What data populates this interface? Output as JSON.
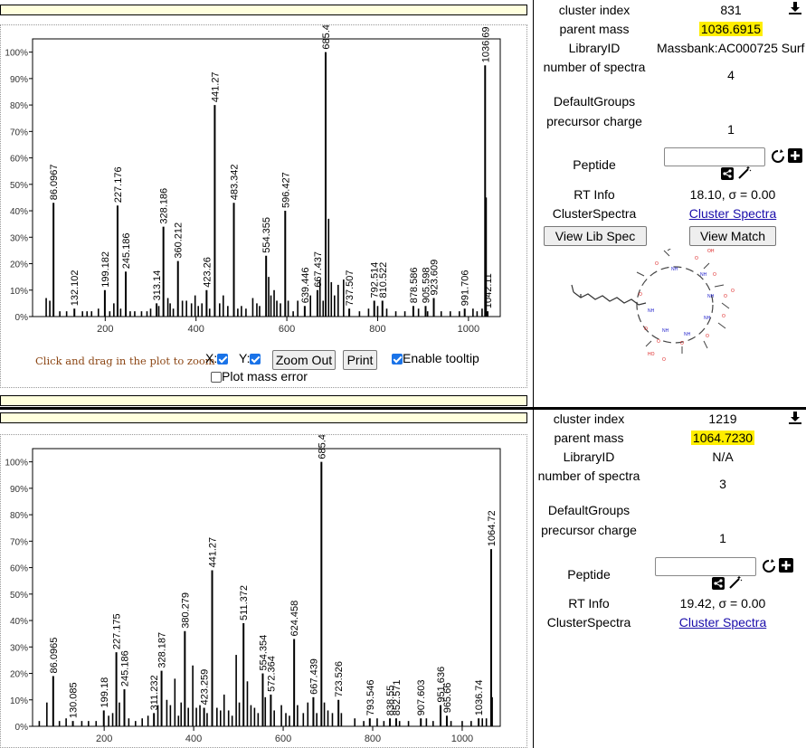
{
  "panels": [
    {
      "info": {
        "cluster_index_label": "cluster index",
        "cluster_index": "831",
        "parent_mass_label": "parent mass",
        "parent_mass": "1036.6915",
        "library_id_label": "LibraryID",
        "library_id": "Massbank:AC000725 Surf",
        "num_spectra_label": "number of spectra",
        "num_spectra": "4",
        "default_groups_label": "DefaultGroups",
        "precursor_charge_label": "precursor charge",
        "precursor_charge": "1",
        "peptide_label": "Peptide",
        "rt_info_label": "RT Info",
        "rt_info": "18.10, σ = 0.00",
        "cluster_spectra_label": "ClusterSpectra",
        "cluster_spectra_link": "Cluster Spectra",
        "view_lib_spec": "View Lib Spec",
        "view_match": "View Match"
      },
      "controls": {
        "hint": "Click and drag in the plot to zoom",
        "x_label": "X:",
        "y_label": "Y:",
        "zoom_out": "Zoom Out",
        "print": "Print",
        "tooltip": "Enable tooltip",
        "mass_error": "Plot mass error"
      }
    },
    {
      "info": {
        "cluster_index_label": "cluster index",
        "cluster_index": "1219",
        "parent_mass_label": "parent mass",
        "parent_mass": "1064.7230",
        "library_id_label": "LibraryID",
        "library_id": "N/A",
        "num_spectra_label": "number of spectra",
        "num_spectra": "3",
        "default_groups_label": "DefaultGroups",
        "precursor_charge_label": "precursor charge",
        "precursor_charge": "1",
        "peptide_label": "Peptide",
        "rt_info_label": "RT Info",
        "rt_info": "19.42, σ = 0.00",
        "cluster_spectra_label": "ClusterSpectra",
        "cluster_spectra_link": "Cluster Spectra"
      }
    }
  ],
  "chart_data": [
    {
      "type": "bar",
      "xlabel": "",
      "ylabel": "",
      "xlim": [
        40,
        1070
      ],
      "ylim": [
        0,
        1.05
      ],
      "x_ticks": [
        "200",
        "400",
        "600",
        "800",
        "1000"
      ],
      "y_ticks": [
        "0%",
        "10%",
        "20%",
        "30%",
        "40%",
        "50%",
        "60%",
        "70%",
        "80%",
        "90%",
        "100%"
      ],
      "labeled_peaks": [
        {
          "mz": 86.0967,
          "intensity": 0.43,
          "label": "86.0967"
        },
        {
          "mz": 132.102,
          "intensity": 0.03,
          "label": "132.102"
        },
        {
          "mz": 199.182,
          "intensity": 0.1,
          "label": "199.182"
        },
        {
          "mz": 227.176,
          "intensity": 0.42,
          "label": "227.176"
        },
        {
          "mz": 245.186,
          "intensity": 0.17,
          "label": "245.186"
        },
        {
          "mz": 313.14,
          "intensity": 0.05,
          "label": "313.14"
        },
        {
          "mz": 328.186,
          "intensity": 0.34,
          "label": "328.186"
        },
        {
          "mz": 360.212,
          "intensity": 0.21,
          "label": "360.212"
        },
        {
          "mz": 423.26,
          "intensity": 0.1,
          "label": "423.26"
        },
        {
          "mz": 441.27,
          "intensity": 0.8,
          "label": "441.27"
        },
        {
          "mz": 483.342,
          "intensity": 0.43,
          "label": "483.342"
        },
        {
          "mz": 554.355,
          "intensity": 0.23,
          "label": "554.355"
        },
        {
          "mz": 596.427,
          "intensity": 0.4,
          "label": "596.427"
        },
        {
          "mz": 639.446,
          "intensity": 0.04,
          "label": "639.446"
        },
        {
          "mz": 667.437,
          "intensity": 0.1,
          "label": "667.437"
        },
        {
          "mz": 685.45,
          "intensity": 1.0,
          "label": "685.45"
        },
        {
          "mz": 737.507,
          "intensity": 0.03,
          "label": "737.507"
        },
        {
          "mz": 792.514,
          "intensity": 0.06,
          "label": "792.514"
        },
        {
          "mz": 810.522,
          "intensity": 0.06,
          "label": "810.522"
        },
        {
          "mz": 878.586,
          "intensity": 0.04,
          "label": "878.586"
        },
        {
          "mz": 905.598,
          "intensity": 0.04,
          "label": "905.598"
        },
        {
          "mz": 923.609,
          "intensity": 0.07,
          "label": "923.609"
        },
        {
          "mz": 991.706,
          "intensity": 0.03,
          "label": "991.706"
        },
        {
          "mz": 1036.69,
          "intensity": 0.95,
          "label": "1036.69"
        },
        {
          "mz": 1042.11,
          "intensity": 0.02,
          "label": "1042.11"
        }
      ],
      "minor_peaks": [
        [
          70,
          0.07
        ],
        [
          78,
          0.06
        ],
        [
          100,
          0.02
        ],
        [
          115,
          0.02
        ],
        [
          150,
          0.02
        ],
        [
          160,
          0.02
        ],
        [
          170,
          0.02
        ],
        [
          185,
          0.03
        ],
        [
          210,
          0.02
        ],
        [
          219,
          0.05
        ],
        [
          234,
          0.03
        ],
        [
          255,
          0.02
        ],
        [
          265,
          0.02
        ],
        [
          280,
          0.02
        ],
        [
          292,
          0.02
        ],
        [
          300,
          0.03
        ],
        [
          318,
          0.04
        ],
        [
          338,
          0.07
        ],
        [
          343,
          0.05
        ],
        [
          350,
          0.03
        ],
        [
          370,
          0.06
        ],
        [
          379,
          0.06
        ],
        [
          390,
          0.05
        ],
        [
          398,
          0.08
        ],
        [
          405,
          0.04
        ],
        [
          413,
          0.05
        ],
        [
          430,
          0.03
        ],
        [
          452,
          0.05
        ],
        [
          460,
          0.08
        ],
        [
          470,
          0.04
        ],
        [
          492,
          0.03
        ],
        [
          500,
          0.04
        ],
        [
          510,
          0.03
        ],
        [
          525,
          0.07
        ],
        [
          534,
          0.05
        ],
        [
          540,
          0.04
        ],
        [
          560,
          0.15
        ],
        [
          565,
          0.08
        ],
        [
          572,
          0.1
        ],
        [
          578,
          0.06
        ],
        [
          586,
          0.05
        ],
        [
          603,
          0.06
        ],
        [
          614,
          0.02
        ],
        [
          624,
          0.06
        ],
        [
          652,
          0.08
        ],
        [
          673,
          0.14
        ],
        [
          680,
          0.06
        ],
        [
          692,
          0.37
        ],
        [
          698,
          0.13
        ],
        [
          705,
          0.08
        ],
        [
          713,
          0.12
        ],
        [
          725,
          0.14
        ],
        [
          760,
          0.02
        ],
        [
          780,
          0.03
        ],
        [
          800,
          0.04
        ],
        [
          820,
          0.03
        ],
        [
          840,
          0.02
        ],
        [
          860,
          0.02
        ],
        [
          890,
          0.03
        ],
        [
          910,
          0.02
        ],
        [
          940,
          0.02
        ],
        [
          960,
          0.02
        ],
        [
          980,
          0.02
        ],
        [
          1010,
          0.03
        ],
        [
          1019,
          0.02
        ],
        [
          1030,
          0.03
        ],
        [
          1039,
          0.45
        ]
      ]
    },
    {
      "type": "bar",
      "xlabel": "",
      "ylabel": "",
      "xlim": [
        40,
        1085
      ],
      "ylim": [
        0,
        1.05
      ],
      "x_ticks": [
        "200",
        "400",
        "600",
        "800",
        "1000"
      ],
      "y_ticks": [
        "0%",
        "10%",
        "20%",
        "30%",
        "40%",
        "50%",
        "60%",
        "70%",
        "80%",
        "90%",
        "100%"
      ],
      "labeled_peaks": [
        {
          "mz": 86.0965,
          "intensity": 0.19,
          "label": "86.0965"
        },
        {
          "mz": 130.085,
          "intensity": 0.02,
          "label": "130.085"
        },
        {
          "mz": 199.18,
          "intensity": 0.06,
          "label": "199.18"
        },
        {
          "mz": 227.175,
          "intensity": 0.28,
          "label": "227.175"
        },
        {
          "mz": 245.186,
          "intensity": 0.14,
          "label": "245.186"
        },
        {
          "mz": 311.232,
          "intensity": 0.05,
          "label": "311.232"
        },
        {
          "mz": 328.187,
          "intensity": 0.21,
          "label": "328.187"
        },
        {
          "mz": 380.279,
          "intensity": 0.36,
          "label": "380.279"
        },
        {
          "mz": 423.259,
          "intensity": 0.07,
          "label": "423.259"
        },
        {
          "mz": 441.27,
          "intensity": 0.59,
          "label": "441.27"
        },
        {
          "mz": 511.372,
          "intensity": 0.39,
          "label": "511.372"
        },
        {
          "mz": 554.354,
          "intensity": 0.2,
          "label": "554.354"
        },
        {
          "mz": 572.364,
          "intensity": 0.12,
          "label": "572.364"
        },
        {
          "mz": 624.458,
          "intensity": 0.33,
          "label": "624.458"
        },
        {
          "mz": 667.439,
          "intensity": 0.11,
          "label": "667.439"
        },
        {
          "mz": 685.44,
          "intensity": 1.0,
          "label": "685.44"
        },
        {
          "mz": 723.526,
          "intensity": 0.1,
          "label": "723.526"
        },
        {
          "mz": 793.546,
          "intensity": 0.03,
          "label": "793.546"
        },
        {
          "mz": 838.55,
          "intensity": 0.03,
          "label": "838.55"
        },
        {
          "mz": 852.571,
          "intensity": 0.03,
          "label": "852.571"
        },
        {
          "mz": 907.603,
          "intensity": 0.03,
          "label": "907.603"
        },
        {
          "mz": 951.636,
          "intensity": 0.08,
          "label": "951.636"
        },
        {
          "mz": 965.66,
          "intensity": 0.04,
          "label": "965.66"
        },
        {
          "mz": 1036.74,
          "intensity": 0.03,
          "label": "1036.74"
        },
        {
          "mz": 1064.72,
          "intensity": 0.67,
          "label": "1064.72"
        }
      ],
      "minor_peaks": [
        [
          55,
          0.02
        ],
        [
          72,
          0.09
        ],
        [
          100,
          0.02
        ],
        [
          115,
          0.03
        ],
        [
          150,
          0.02
        ],
        [
          165,
          0.02
        ],
        [
          182,
          0.02
        ],
        [
          210,
          0.04
        ],
        [
          219,
          0.05
        ],
        [
          234,
          0.09
        ],
        [
          255,
          0.03
        ],
        [
          270,
          0.02
        ],
        [
          285,
          0.03
        ],
        [
          298,
          0.04
        ],
        [
          320,
          0.08
        ],
        [
          340,
          0.1
        ],
        [
          348,
          0.08
        ],
        [
          358,
          0.18
        ],
        [
          366,
          0.04
        ],
        [
          372,
          0.09
        ],
        [
          388,
          0.07
        ],
        [
          398,
          0.23
        ],
        [
          406,
          0.07
        ],
        [
          414,
          0.08
        ],
        [
          430,
          0.05
        ],
        [
          452,
          0.07
        ],
        [
          460,
          0.06
        ],
        [
          468,
          0.12
        ],
        [
          478,
          0.06
        ],
        [
          486,
          0.04
        ],
        [
          495,
          0.27
        ],
        [
          502,
          0.09
        ],
        [
          520,
          0.17
        ],
        [
          528,
          0.08
        ],
        [
          536,
          0.07
        ],
        [
          544,
          0.05
        ],
        [
          560,
          0.11
        ],
        [
          580,
          0.06
        ],
        [
          596,
          0.08
        ],
        [
          606,
          0.05
        ],
        [
          614,
          0.04
        ],
        [
          632,
          0.08
        ],
        [
          645,
          0.05
        ],
        [
          655,
          0.09
        ],
        [
          675,
          0.05
        ],
        [
          692,
          0.09
        ],
        [
          700,
          0.06
        ],
        [
          710,
          0.05
        ],
        [
          730,
          0.05
        ],
        [
          760,
          0.03
        ],
        [
          780,
          0.02
        ],
        [
          810,
          0.03
        ],
        [
          825,
          0.02
        ],
        [
          860,
          0.02
        ],
        [
          880,
          0.02
        ],
        [
          920,
          0.03
        ],
        [
          935,
          0.02
        ],
        [
          975,
          0.02
        ],
        [
          1000,
          0.02
        ],
        [
          1020,
          0.02
        ],
        [
          1045,
          0.03
        ],
        [
          1054,
          0.03
        ],
        [
          1067,
          0.11
        ]
      ]
    }
  ]
}
